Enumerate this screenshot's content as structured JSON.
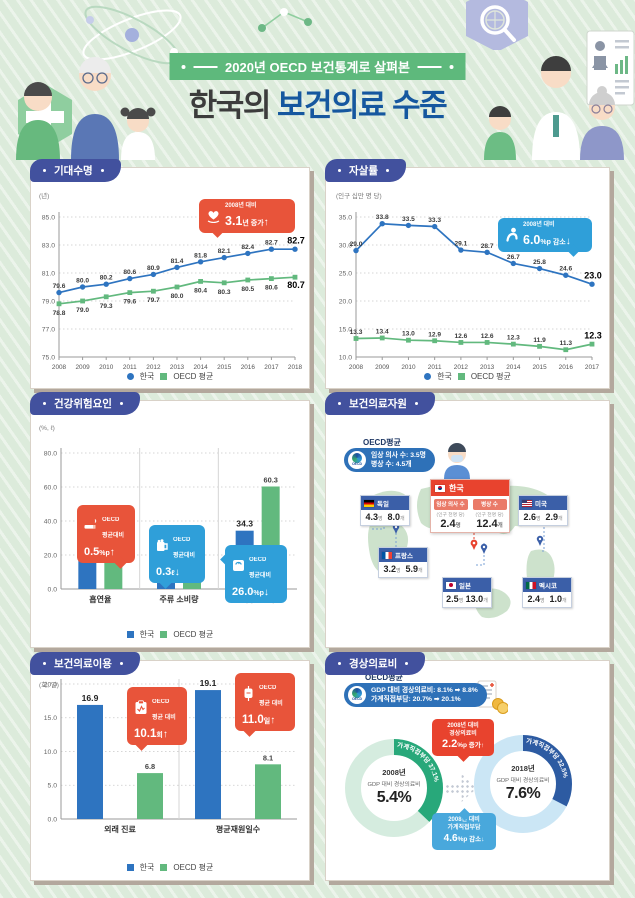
{
  "header": {
    "badge": "2020년 OECD 보건통계로 살펴본",
    "title_prefix": "한국의",
    "title_main": "보건의료 수준"
  },
  "legend": {
    "korea": "한국",
    "oecd": "OECD 평균"
  },
  "colors": {
    "korea_blue": "#2e74c0",
    "oecd_green": "#62b97e",
    "panel_title_indigo": "#42519e",
    "red_badge": "#e8543a",
    "blue_badge": "#2f9fd9",
    "title_accent": "#15579f",
    "background_green": "#dcebdb",
    "donut_green": "#28a87a",
    "donut_navy": "#2d5ba2"
  },
  "panels": {
    "life": {
      "title": "기대수명",
      "unit": "(년)",
      "badge": {
        "icon": "heart-hands-icon",
        "line1": "2008년 대비",
        "value": "3.1",
        "suffix": "년 증가",
        "arrow": "↑"
      }
    },
    "suicide": {
      "title": "자살률",
      "unit": "(인구 십만 명 당)",
      "badge": {
        "icon": "slumped-person-icon",
        "line1": "2008년 대비",
        "value": "6.0",
        "suffix": "%p 감소",
        "arrow": "↓"
      }
    },
    "risk": {
      "title": "건강위험요인",
      "unit": "(%, ℓ)",
      "badges": [
        {
          "icon": "cigarette-icon",
          "line1": "OECD",
          "line2": "평균대비",
          "value": "0.5",
          "suffix": "%p",
          "arrow": "↑"
        },
        {
          "icon": "beer-mug-icon",
          "line1": "OECD",
          "line2": "평균대비",
          "value": "0.3",
          "suffix": "ℓ",
          "arrow": "↓"
        },
        {
          "icon": "body-scale-icon",
          "line1": "OECD",
          "line2": "평균대비",
          "value": "26.0",
          "suffix": "%p",
          "arrow": "↓"
        }
      ]
    },
    "resources": {
      "title": "보건의료자원"
    },
    "use": {
      "title": "보건의료이용",
      "unit": "(회, 일)",
      "badges": [
        {
          "icon": "clipboard-icon",
          "line1": "OECD",
          "line2": "평균 대비",
          "value": "10.1",
          "suffix": "회",
          "arrow": "↑"
        },
        {
          "icon": "iv-bag-icon",
          "line1": "OECD",
          "line2": "평균 대비",
          "value": "11.0",
          "suffix": "일",
          "arrow": "↑"
        }
      ]
    },
    "cost": {
      "title": "경상의료비"
    }
  },
  "chart_data": [
    {
      "id": "life_expectancy",
      "type": "line",
      "title": "기대수명",
      "ylabel": "(년)",
      "x": [
        "2008",
        "2009",
        "2010",
        "2011",
        "2012",
        "2013",
        "2014",
        "2015",
        "2016",
        "2017",
        "2018"
      ],
      "ylim": [
        75.0,
        85.0
      ],
      "yticks": [
        75.0,
        77.0,
        79.0,
        81.0,
        83.0,
        85.0
      ],
      "grid": true,
      "legend_position": "bottom",
      "series": [
        {
          "name": "한국",
          "color": "#2e74c0",
          "marker": "circle",
          "label": "above",
          "values": [
            79.6,
            80.0,
            80.2,
            80.6,
            80.9,
            81.4,
            81.8,
            82.1,
            82.4,
            82.7,
            82.7
          ]
        },
        {
          "name": "OECD 평균",
          "color": "#62b97e",
          "marker": "square",
          "label": "below",
          "values": [
            78.8,
            79.0,
            79.3,
            79.6,
            79.7,
            80.0,
            80.4,
            80.3,
            80.5,
            80.6,
            80.7
          ]
        }
      ],
      "annotation": "2008년 대비 3.1년 증가↑"
    },
    {
      "id": "suicide_rate",
      "type": "line",
      "title": "자살률",
      "ylabel": "(인구 십만 명 당)",
      "x": [
        "2008",
        "2009",
        "2010",
        "2011",
        "2012",
        "2013",
        "2014",
        "2015",
        "2016",
        "2017"
      ],
      "ylim": [
        10.0,
        35.0
      ],
      "yticks": [
        10.0,
        15.0,
        20.0,
        25.0,
        30.0,
        35.0
      ],
      "grid": true,
      "legend_position": "bottom",
      "series": [
        {
          "name": "한국",
          "color": "#2e74c0",
          "marker": "circle",
          "label": "above",
          "values": [
            29.0,
            33.8,
            33.5,
            33.3,
            29.1,
            28.7,
            26.7,
            25.8,
            24.6,
            23.0
          ]
        },
        {
          "name": "OECD 평균",
          "color": "#62b97e",
          "marker": "square",
          "label": "above",
          "values": [
            13.3,
            13.4,
            13.0,
            12.9,
            12.6,
            12.6,
            12.3,
            11.9,
            11.3,
            12.3
          ]
        }
      ],
      "annotation": "2008년 대비 6.0%p 감소↓"
    },
    {
      "id": "health_risk_factors",
      "type": "bar",
      "title": "건강위험요인",
      "ylabel": "(%, ℓ)",
      "categories": [
        "흡연율",
        "주류 소비량",
        "과체중 및 비만"
      ],
      "ylim": [
        0.0,
        80.0
      ],
      "yticks": [
        0.0,
        20.0,
        40.0,
        60.0,
        80.0
      ],
      "grid": true,
      "legend_position": "bottom",
      "series": [
        {
          "name": "한국",
          "color": "#2e74c0",
          "values": [
            17.5,
            8.5,
            34.3
          ]
        },
        {
          "name": "OECD 평균",
          "color": "#62b97e",
          "values": [
            17.0,
            8.8,
            60.3
          ]
        }
      ],
      "annotations": [
        "OECD 평균대비 0.5%p↑",
        "OECD 평균대비 0.3ℓ↓",
        "OECD 평균대비 26.0%p↓"
      ]
    },
    {
      "id": "health_resources",
      "type": "table",
      "title": "보건의료자원",
      "oecd_label": "OECD평균",
      "oecd_doctors": "임상 의사 수: 3.5명",
      "oecd_beds": "병상 수: 4.5개",
      "units": {
        "doctors": "명",
        "beds": "개"
      },
      "korea": {
        "name": "한국",
        "doctors_label": "임상 의사 수",
        "beds_label": "병상 수",
        "per_capita": "(인구 천명 당)",
        "doctors": "2.4",
        "beds": "12.4"
      },
      "countries": [
        {
          "name": "독일",
          "flag": "germany-flag",
          "doctors": "4.3",
          "beds": "8.0"
        },
        {
          "name": "프랑스",
          "flag": "france-flag",
          "doctors": "3.2",
          "beds": "5.9"
        },
        {
          "name": "일본",
          "flag": "japan-flag",
          "doctors": "2.5",
          "beds": "13.0"
        },
        {
          "name": "미국",
          "flag": "usa-flag",
          "doctors": "2.6",
          "beds": "2.9"
        },
        {
          "name": "멕시코",
          "flag": "mexico-flag",
          "doctors": "2.4",
          "beds": "1.0"
        }
      ]
    },
    {
      "id": "healthcare_use",
      "type": "bar",
      "title": "보건의료이용",
      "ylabel": "(회, 일)",
      "categories": [
        "외래 진료",
        "평균재원일수"
      ],
      "ylim": [
        0.0,
        20.0
      ],
      "yticks": [
        0.0,
        5.0,
        10.0,
        15.0,
        20.0
      ],
      "grid": true,
      "legend_position": "bottom",
      "series": [
        {
          "name": "한국",
          "color": "#2e74c0",
          "values": [
            16.9,
            19.1
          ]
        },
        {
          "name": "OECD 평균",
          "color": "#62b97e",
          "values": [
            6.8,
            8.1
          ]
        }
      ],
      "annotations": [
        "OECD 평균 대비 10.1회↑",
        "OECD 평균 대비 11.0일↑"
      ]
    },
    {
      "id": "health_expenditure",
      "type": "pie",
      "title": "경상의료비",
      "oecd_label": "OECD평균",
      "oecd_line1": "GDP 대비 경상의료비: 8.1% ➡ 8.8%",
      "oecd_line2": "가계직접부담: 20.7% ➡ 20.1%",
      "red_callout": {
        "line1": "2008년 대비",
        "line2": "경상의료비",
        "value": "2.2",
        "suffix": "%p 증가",
        "arrow": "↑"
      },
      "blue_callout": {
        "line1": "2008년 대비",
        "line2": "가계직접부담",
        "value": "4.6",
        "suffix": "%p 감소",
        "arrow": "↓"
      },
      "donuts": [
        {
          "year": "2008년",
          "label": "GDP 대비 경상의료비",
          "value": "5.4%",
          "ring": "가계직접부담 37.1%",
          "pct": 37.1
        },
        {
          "year": "2018년",
          "label": "GDP 대비 경상의료비",
          "value": "7.6%",
          "ring": "가계직접부담 32.5%",
          "pct": 32.5
        }
      ]
    }
  ]
}
